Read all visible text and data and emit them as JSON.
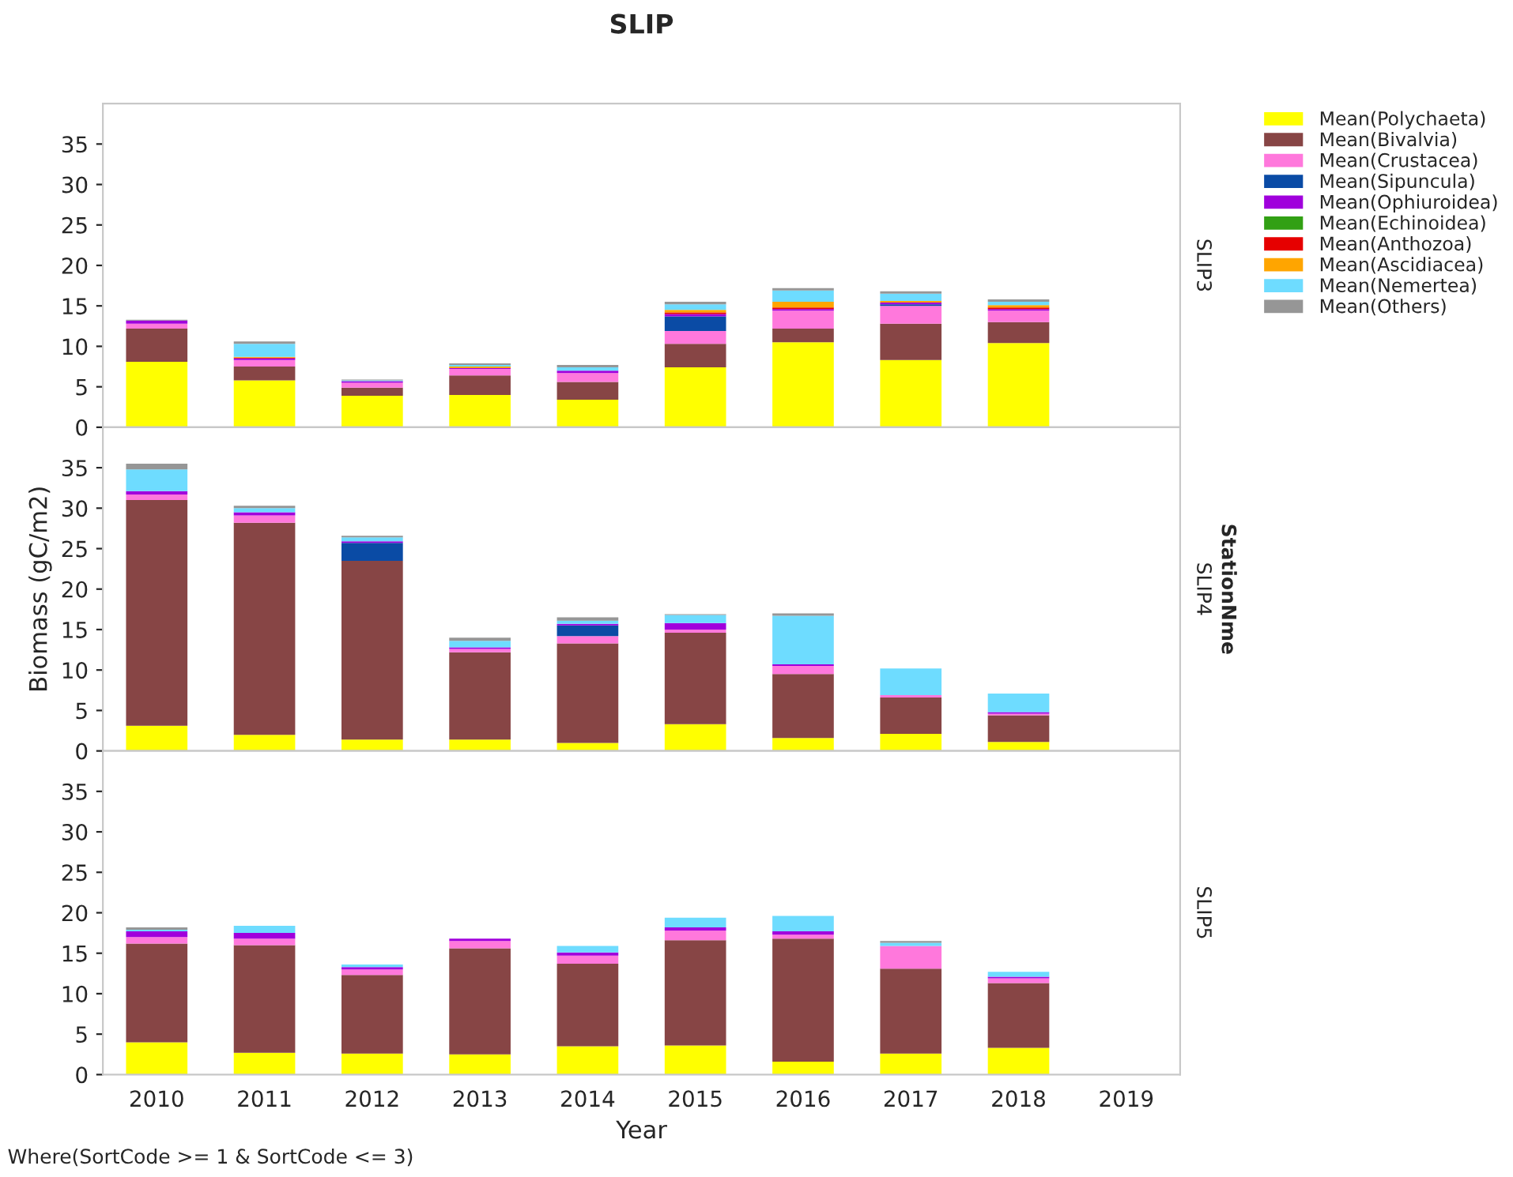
{
  "chart_data": [
    {
      "type": "bar",
      "title": "SLIP",
      "y2label": "SLIP3",
      "stacked": true,
      "legend": "right",
      "tick_labels": "y",
      "categories": [
        "2010",
        "2011",
        "2012",
        "2013",
        "2014",
        "2015",
        "2016",
        "2017",
        "2018",
        "2019"
      ],
      "ylim": [
        0,
        40
      ],
      "yticks": [
        0,
        5,
        10,
        15,
        20,
        25,
        30,
        35
      ],
      "series": [
        {
          "name": "Mean(Polychaeta)",
          "color": "#ffff00",
          "values": [
            8.1,
            5.8,
            3.9,
            4.0,
            3.4,
            7.4,
            10.5,
            8.3,
            10.4,
            null
          ]
        },
        {
          "name": "Mean(Bivalvia)",
          "color": "#874545",
          "values": [
            4.1,
            1.7,
            1.0,
            2.4,
            2.2,
            2.9,
            1.7,
            4.5,
            2.6,
            null
          ]
        },
        {
          "name": "Mean(Crustacea)",
          "color": "#ff78dc",
          "values": [
            0.6,
            0.8,
            0.6,
            0.8,
            1.1,
            1.6,
            2.2,
            2.2,
            1.4,
            null
          ]
        },
        {
          "name": "Mean(Sipuncula)",
          "color": "#0a4ba5",
          "values": [
            null,
            null,
            null,
            null,
            null,
            1.8,
            null,
            0.2,
            null,
            null
          ]
        },
        {
          "name": "Mean(Ophiuroidea)",
          "color": "#a000dc",
          "values": [
            0.4,
            0.2,
            0.2,
            0.1,
            0.3,
            0.3,
            0.2,
            0.2,
            0.2,
            null
          ]
        },
        {
          "name": "Mean(Echinoidea)",
          "color": "#32a014",
          "values": [
            null,
            null,
            null,
            null,
            null,
            null,
            null,
            null,
            null,
            null
          ]
        },
        {
          "name": "Mean(Anthozoa)",
          "color": "#e60000",
          "values": [
            null,
            0.1,
            null,
            null,
            null,
            0.2,
            0.2,
            null,
            0.2,
            null
          ]
        },
        {
          "name": "Mean(Ascidiacea)",
          "color": "#ffa500",
          "values": [
            null,
            0.1,
            null,
            0.2,
            null,
            0.3,
            0.7,
            0.2,
            0.3,
            null
          ]
        },
        {
          "name": "Mean(Nemertea)",
          "color": "#6edcff",
          "values": [
            null,
            1.6,
            0.1,
            0.2,
            0.4,
            0.7,
            1.4,
            0.9,
            0.4,
            null
          ]
        },
        {
          "name": "Mean(Others)",
          "color": "#969696",
          "values": [
            0.1,
            0.3,
            0.1,
            0.2,
            0.3,
            0.3,
            0.3,
            0.3,
            0.3,
            null
          ]
        }
      ]
    },
    {
      "type": "bar",
      "ylabel": "Biomass (gC/m2)",
      "y2label": "SLIP4",
      "stacked": true,
      "tick_labels": "y",
      "annotations": [
        "StationNme"
      ],
      "categories": [
        "2010",
        "2011",
        "2012",
        "2013",
        "2014",
        "2015",
        "2016",
        "2017",
        "2018",
        "2019"
      ],
      "ylim": [
        0,
        40
      ],
      "yticks": [
        0,
        5,
        10,
        15,
        20,
        25,
        30,
        35
      ],
      "series": [
        {
          "color": "#ffff00",
          "values": [
            3.1,
            2.0,
            1.4,
            1.4,
            1.0,
            3.3,
            1.6,
            2.1,
            1.1,
            null
          ]
        },
        {
          "color": "#874545",
          "values": [
            27.9,
            26.2,
            22.1,
            10.8,
            12.3,
            11.3,
            7.9,
            4.5,
            3.3,
            null
          ]
        },
        {
          "color": "#ff78dc",
          "values": [
            0.7,
            0.9,
            null,
            0.4,
            0.9,
            0.4,
            1.0,
            0.3,
            0.2,
            null
          ]
        },
        {
          "color": "#0a4ba5",
          "values": [
            null,
            null,
            2.2,
            null,
            1.3,
            null,
            null,
            null,
            null,
            null
          ]
        },
        {
          "color": "#a000dc",
          "values": [
            0.4,
            0.4,
            0.2,
            0.2,
            0.2,
            0.8,
            0.2,
            null,
            0.2,
            null
          ]
        },
        {
          "color": "#6edcff",
          "values": [
            2.7,
            0.5,
            0.5,
            0.8,
            0.4,
            1.0,
            6.0,
            3.3,
            2.3,
            null
          ]
        },
        {
          "color": "#969696",
          "values": [
            0.7,
            0.3,
            0.2,
            0.4,
            0.4,
            0.1,
            0.3,
            null,
            null,
            null
          ]
        }
      ]
    },
    {
      "type": "bar",
      "xlabel": "Year",
      "y2label": "SLIP5",
      "stacked": true,
      "annotations": [
        "Where(SortCode >= 1 & SortCode <= 3)"
      ],
      "categories": [
        "2010",
        "2011",
        "2012",
        "2013",
        "2014",
        "2015",
        "2016",
        "2017",
        "2018",
        "2019"
      ],
      "ylim": [
        0,
        40
      ],
      "yticks": [
        0,
        5,
        10,
        15,
        20,
        25,
        30,
        35
      ],
      "series": [
        {
          "color": "#ffff00",
          "values": [
            4.0,
            2.7,
            2.6,
            2.5,
            3.5,
            3.6,
            1.6,
            2.6,
            3.3,
            null
          ]
        },
        {
          "color": "#874545",
          "values": [
            12.2,
            13.3,
            9.7,
            13.1,
            10.2,
            13.0,
            15.2,
            10.5,
            8.0,
            null
          ]
        },
        {
          "color": "#ff78dc",
          "values": [
            0.8,
            0.8,
            0.7,
            0.9,
            1.0,
            1.2,
            0.5,
            2.8,
            0.6,
            null
          ]
        },
        {
          "color": "#a000dc",
          "values": [
            0.7,
            0.7,
            0.3,
            0.3,
            0.4,
            0.4,
            0.4,
            null,
            0.2,
            null
          ]
        },
        {
          "color": "#6edcff",
          "values": [
            0.2,
            0.9,
            0.3,
            null,
            0.8,
            1.2,
            1.9,
            0.4,
            0.6,
            null
          ]
        },
        {
          "color": "#969696",
          "values": [
            0.3,
            null,
            null,
            null,
            null,
            null,
            null,
            0.2,
            null,
            null
          ]
        }
      ]
    }
  ]
}
